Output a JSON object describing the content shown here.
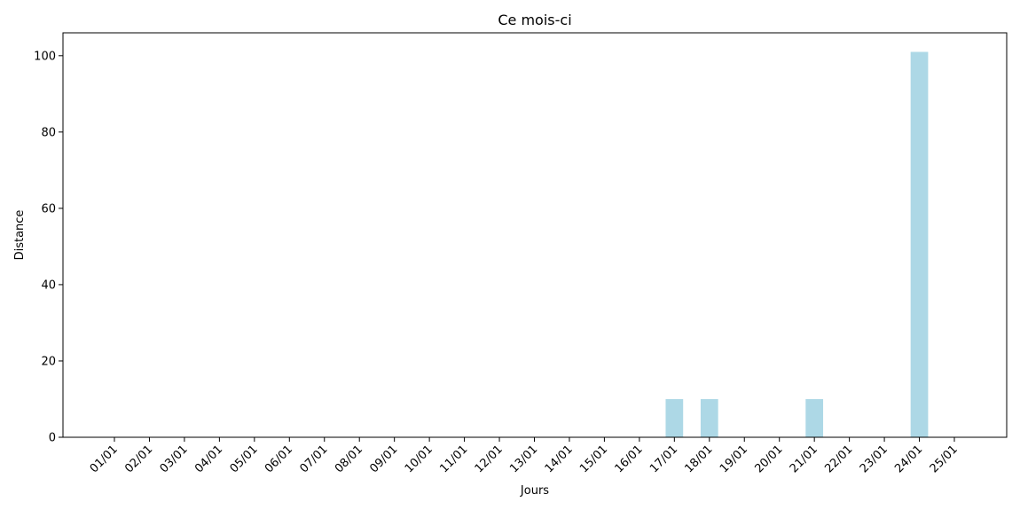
{
  "chart_data": {
    "type": "bar",
    "title": "Ce mois-ci",
    "xlabel": "Jours",
    "ylabel": "Distance",
    "categories": [
      "01/01",
      "02/01",
      "03/01",
      "04/01",
      "05/01",
      "06/01",
      "07/01",
      "08/01",
      "09/01",
      "10/01",
      "11/01",
      "12/01",
      "13/01",
      "14/01",
      "15/01",
      "16/01",
      "17/01",
      "18/01",
      "19/01",
      "20/01",
      "21/01",
      "22/01",
      "23/01",
      "24/01",
      "25/01"
    ],
    "values": [
      0,
      0,
      0,
      0,
      0,
      0,
      0,
      0,
      0,
      0,
      0,
      0,
      0,
      0,
      0,
      0,
      10,
      10,
      0,
      0,
      10,
      0,
      0,
      101,
      0
    ],
    "ylim": [
      0,
      106
    ],
    "yticks": [
      0,
      20,
      40,
      60,
      80,
      100
    ],
    "bar_color": "#add8e6",
    "grid": false,
    "legend": "none"
  }
}
